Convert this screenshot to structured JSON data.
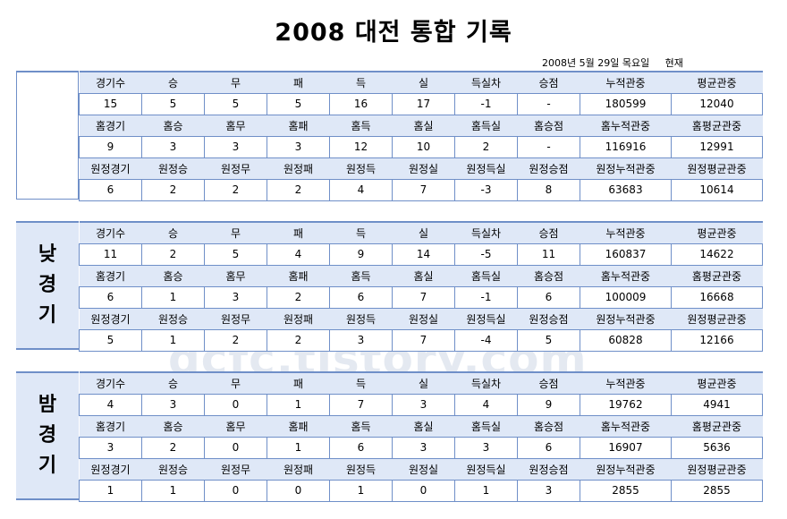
{
  "title": "2008 대전 통합 기록",
  "date": "2008년 5월 29일 목요일     현재",
  "watermark": "dcfc.tistory.com",
  "headers": {
    "total": [
      "경기수",
      "승",
      "무",
      "패",
      "득",
      "실",
      "득실차",
      "승점",
      "누적관중",
      "평균관중"
    ],
    "home": [
      "홈경기",
      "홈승",
      "홈무",
      "홈패",
      "홈득",
      "홈실",
      "홈득실",
      "홈승점",
      "홈누적관중",
      "홈평균관중"
    ],
    "away": [
      "원정경기",
      "원정승",
      "원정무",
      "원정패",
      "원정득",
      "원정실",
      "원정득실",
      "원정승점",
      "원정누적관중",
      "원정평균관중"
    ]
  },
  "sections": [
    {
      "label": [
        "",
        ""
      ],
      "total": [
        "15",
        "5",
        "5",
        "5",
        "16",
        "17",
        "-1",
        "-",
        "180599",
        "12040"
      ],
      "home": [
        "9",
        "3",
        "3",
        "3",
        "12",
        "10",
        "2",
        "-",
        "116916",
        "12991"
      ],
      "away": [
        "6",
        "2",
        "2",
        "2",
        "4",
        "7",
        "-3",
        "8",
        "63683",
        "10614"
      ]
    },
    {
      "label": [
        "낮",
        "경",
        "기"
      ],
      "total": [
        "11",
        "2",
        "5",
        "4",
        "9",
        "14",
        "-5",
        "11",
        "160837",
        "14622"
      ],
      "home": [
        "6",
        "1",
        "3",
        "2",
        "6",
        "7",
        "-1",
        "6",
        "100009",
        "16668"
      ],
      "away": [
        "5",
        "1",
        "2",
        "2",
        "3",
        "7",
        "-4",
        "5",
        "60828",
        "12166"
      ]
    },
    {
      "label": [
        "밤",
        "경",
        "기"
      ],
      "total": [
        "4",
        "3",
        "0",
        "1",
        "7",
        "3",
        "4",
        "9",
        "19762",
        "4941"
      ],
      "home": [
        "3",
        "2",
        "0",
        "1",
        "6",
        "3",
        "3",
        "6",
        "16907",
        "5636"
      ],
      "away": [
        "1",
        "1",
        "0",
        "0",
        "1",
        "0",
        "1",
        "3",
        "2855",
        "2855"
      ]
    }
  ]
}
